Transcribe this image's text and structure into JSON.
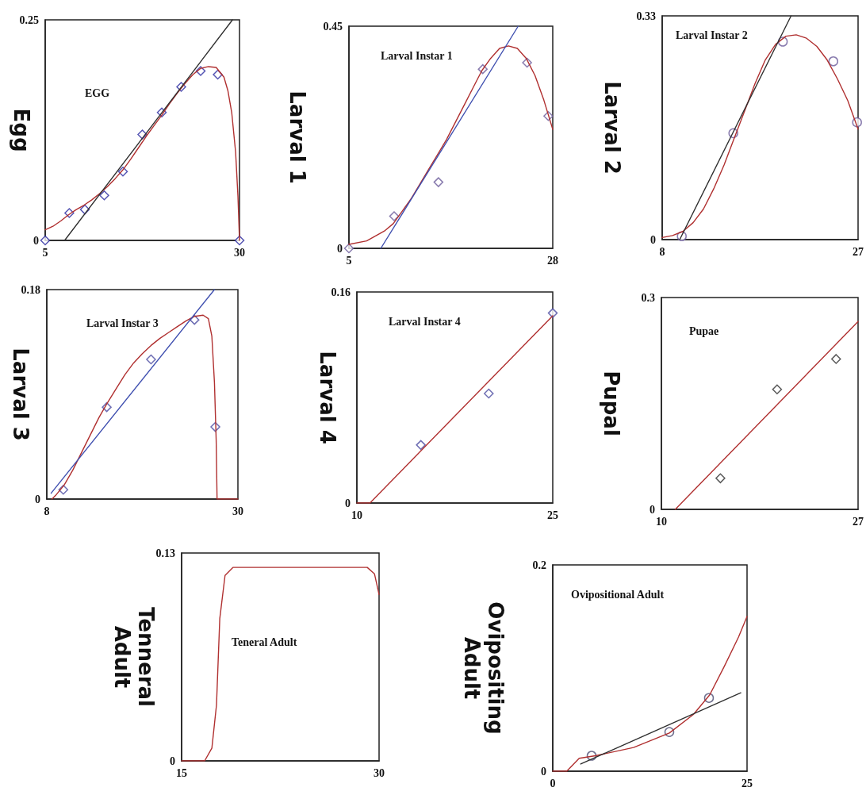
{
  "chart_data": [
    {
      "type": "scatter",
      "title": "EGG",
      "ylabel": "Egg",
      "xlim": [
        5,
        30
      ],
      "xticks": [
        5,
        30
      ],
      "ylim": [
        0,
        0.25
      ],
      "yticks": [
        0,
        0.25
      ],
      "series": [
        {
          "type": "line",
          "marker": "none",
          "color": "#b03030",
          "x": [
            5,
            6,
            7,
            8,
            9,
            10,
            11,
            12,
            13,
            14,
            15,
            16,
            17,
            18,
            19,
            20,
            21,
            22,
            23,
            24,
            25,
            26,
            27,
            28,
            28.5,
            29,
            29.5,
            29.8,
            30
          ],
          "values": [
            0.012,
            0.016,
            0.022,
            0.029,
            0.035,
            0.04,
            0.046,
            0.053,
            0.061,
            0.07,
            0.08,
            0.092,
            0.105,
            0.118,
            0.13,
            0.142,
            0.155,
            0.167,
            0.178,
            0.188,
            0.195,
            0.197,
            0.196,
            0.185,
            0.17,
            0.145,
            0.1,
            0.05,
            0
          ]
        },
        {
          "type": "line",
          "marker": "none",
          "color": "#303030",
          "x": [
            7.5,
            29.1
          ],
          "values": [
            0,
            0.25
          ]
        },
        {
          "type": "scatter",
          "marker": "diamond",
          "color": "#2a2aa0",
          "x": [
            5,
            8.1,
            10.1,
            12.6,
            15,
            17.5,
            20,
            22.5,
            25,
            27.2,
            30
          ],
          "values": [
            0,
            0.031,
            0.035,
            0.051,
            0.078,
            0.12,
            0.145,
            0.174,
            0.192,
            0.188,
            0
          ]
        }
      ]
    },
    {
      "type": "scatter",
      "title": "Larval Instar 1",
      "ylabel": "Larval 1",
      "xlim": [
        5,
        28
      ],
      "xticks": [
        5,
        28
      ],
      "ylim": [
        0,
        0.45
      ],
      "yticks": [
        0,
        0.45
      ],
      "series": [
        {
          "type": "line",
          "marker": "none",
          "color": "#b03030",
          "x": [
            5,
            7,
            9,
            10,
            11,
            12,
            13,
            14,
            15,
            16,
            17,
            18,
            19,
            20,
            21,
            22,
            23,
            24,
            25,
            26,
            27,
            28
          ],
          "values": [
            0.008,
            0.015,
            0.035,
            0.05,
            0.075,
            0.1,
            0.13,
            0.16,
            0.19,
            0.22,
            0.255,
            0.29,
            0.325,
            0.36,
            0.385,
            0.405,
            0.41,
            0.405,
            0.385,
            0.35,
            0.3,
            0.241
          ]
        },
        {
          "type": "line",
          "marker": "none",
          "color": "#4050b0",
          "x": [
            8.6,
            24.1
          ],
          "values": [
            0,
            0.45
          ]
        },
        {
          "type": "scatter",
          "marker": "diamond",
          "color": "#6a5a9a",
          "x": [
            5,
            10.1,
            15.1,
            20.1,
            25.1,
            27.5
          ],
          "values": [
            0,
            0.065,
            0.134,
            0.363,
            0.376,
            0.268
          ]
        }
      ]
    },
    {
      "type": "scatter",
      "title": "Larval Instar 2",
      "ylabel": "Larval 2",
      "xlim": [
        8,
        27
      ],
      "xticks": [
        8,
        27
      ],
      "ylim": [
        0,
        0.33
      ],
      "yticks": [
        0,
        0.33
      ],
      "series": [
        {
          "type": "line",
          "marker": "none",
          "color": "#b03030",
          "x": [
            8,
            9,
            10,
            11,
            12,
            13,
            14,
            15,
            16,
            17,
            18,
            19,
            20,
            21,
            22,
            23,
            24,
            25,
            26,
            27
          ],
          "values": [
            0.003,
            0.006,
            0.012,
            0.025,
            0.045,
            0.075,
            0.11,
            0.15,
            0.19,
            0.23,
            0.265,
            0.288,
            0.3,
            0.302,
            0.297,
            0.285,
            0.265,
            0.237,
            0.205,
            0.163
          ]
        },
        {
          "type": "line",
          "marker": "none",
          "color": "#303030",
          "x": [
            9.7,
            20.5
          ],
          "values": [
            0,
            0.33
          ]
        },
        {
          "type": "scatter",
          "marker": "circle",
          "color": "#6a5a9a",
          "x": [
            9.9,
            14.9,
            19.7,
            24.6,
            26.9
          ],
          "values": [
            0.005,
            0.157,
            0.292,
            0.263,
            0.173
          ]
        }
      ]
    },
    {
      "type": "scatter",
      "title": "Larval Instar 3",
      "ylabel": "Larval 3",
      "xlim": [
        8,
        30
      ],
      "xticks": [
        8,
        30
      ],
      "ylim": [
        0,
        0.18
      ],
      "yticks": [
        0,
        0.18
      ],
      "series": [
        {
          "type": "line",
          "marker": "none",
          "color": "#b03030",
          "x": [
            8.6,
            9,
            10,
            11,
            12,
            13,
            14,
            15,
            16,
            17,
            18,
            19,
            20,
            21,
            22,
            23,
            24,
            25,
            26,
            26.6,
            27,
            27.3,
            27.5,
            27.6,
            30
          ],
          "values": [
            0,
            0.003,
            0.012,
            0.025,
            0.04,
            0.055,
            0.07,
            0.083,
            0.095,
            0.107,
            0.117,
            0.125,
            0.132,
            0.138,
            0.143,
            0.148,
            0.153,
            0.157,
            0.158,
            0.155,
            0.14,
            0.1,
            0.05,
            0,
            0
          ]
        },
        {
          "type": "line",
          "marker": "none",
          "color": "#4050b0",
          "x": [
            8.5,
            27.3
          ],
          "values": [
            0.005,
            0.18
          ]
        },
        {
          "type": "scatter",
          "marker": "diamond",
          "color": "#4a4aa0",
          "x": [
            9.9,
            14.9,
            20,
            25,
            27.4
          ],
          "values": [
            0.008,
            0.079,
            0.12,
            0.154,
            0.062
          ]
        }
      ]
    },
    {
      "type": "scatter",
      "title": "Larval Instar 4",
      "ylabel": "Larval 4",
      "xlim": [
        10,
        25
      ],
      "xticks": [
        10,
        25
      ],
      "ylim": [
        0,
        0.16
      ],
      "yticks": [
        0,
        0.16
      ],
      "series": [
        {
          "type": "line",
          "marker": "none",
          "color": "#b03030",
          "x": [
            10,
            11,
            25
          ],
          "values": [
            0,
            0,
            0.142
          ]
        },
        {
          "type": "scatter",
          "marker": "diamond",
          "color": "#4a4aa0",
          "x": [
            14.9,
            20.1,
            25
          ],
          "values": [
            0.044,
            0.083,
            0.144
          ]
        }
      ]
    },
    {
      "type": "scatter",
      "title": "Pupae",
      "ylabel": "Pupal",
      "xlim": [
        10,
        27
      ],
      "xticks": [
        10,
        27
      ],
      "ylim": [
        0,
        0.3
      ],
      "yticks": [
        0,
        0.3
      ],
      "series": [
        {
          "type": "line",
          "marker": "none",
          "color": "#b03030",
          "x": [
            11.2,
            27
          ],
          "values": [
            0,
            0.266
          ]
        },
        {
          "type": "scatter",
          "marker": "diamond",
          "color": "#303030",
          "x": [
            15.1,
            20,
            25.1
          ],
          "values": [
            0.044,
            0.17,
            0.213
          ]
        }
      ]
    },
    {
      "type": "scatter",
      "title": "Teneral Adult",
      "ylabel": "Tenneral\nAdult",
      "xlim": [
        15,
        30
      ],
      "xticks": [
        15,
        30
      ],
      "ylim": [
        0,
        0.13
      ],
      "yticks": [
        0,
        0.13
      ],
      "series": [
        {
          "type": "line",
          "marker": "none",
          "color": "#b03030",
          "x": [
            15,
            16.75,
            17.3,
            17.65,
            17.9,
            18.3,
            18.9,
            29.1,
            29.65,
            30
          ],
          "values": [
            0,
            0,
            0.008,
            0.035,
            0.089,
            0.116,
            0.121,
            0.121,
            0.117,
            0.104
          ]
        }
      ]
    },
    {
      "type": "scatter",
      "title": "Ovipositional Adult",
      "ylabel": "Ovipositing\nAdult",
      "xlim": [
        0,
        25
      ],
      "xticks": [
        0,
        25
      ],
      "ylim": [
        0,
        0.2
      ],
      "yticks": [
        0,
        0.2
      ],
      "series": [
        {
          "type": "line",
          "marker": "none",
          "color": "#b03030",
          "x": [
            0,
            1.8,
            3.4,
            5.5,
            10.4,
            15,
            18.1,
            20.2,
            22.1,
            23.9,
            25
          ],
          "values": [
            0,
            0,
            0.0125,
            0.015,
            0.023,
            0.037,
            0.055,
            0.074,
            0.102,
            0.13,
            0.15
          ]
        },
        {
          "type": "line",
          "marker": "none",
          "color": "#303030",
          "x": [
            3.6,
            24.2
          ],
          "values": [
            0.007,
            0.076
          ]
        },
        {
          "type": "scatter",
          "marker": "circle",
          "color": "#4a4a70",
          "x": [
            5,
            15,
            20.1
          ],
          "values": [
            0.015,
            0.038,
            0.071
          ]
        }
      ]
    }
  ]
}
